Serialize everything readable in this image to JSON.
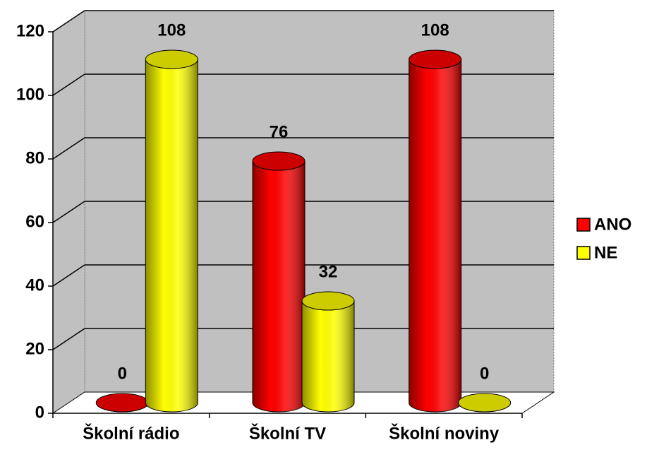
{
  "chart_data": {
    "type": "bar3d",
    "categories": [
      "Školní rádio",
      "Školní TV",
      "Školní noviny"
    ],
    "series": [
      {
        "name": "ANO",
        "color": "#ff0000",
        "values": [
          0,
          76,
          108
        ]
      },
      {
        "name": "NE",
        "color": "#ffff00",
        "values": [
          108,
          32,
          0
        ]
      }
    ],
    "ylim": [
      0,
      120
    ],
    "yticks": [
      0,
      20,
      40,
      60,
      80,
      100,
      120
    ],
    "grid": true,
    "legend": "right"
  }
}
